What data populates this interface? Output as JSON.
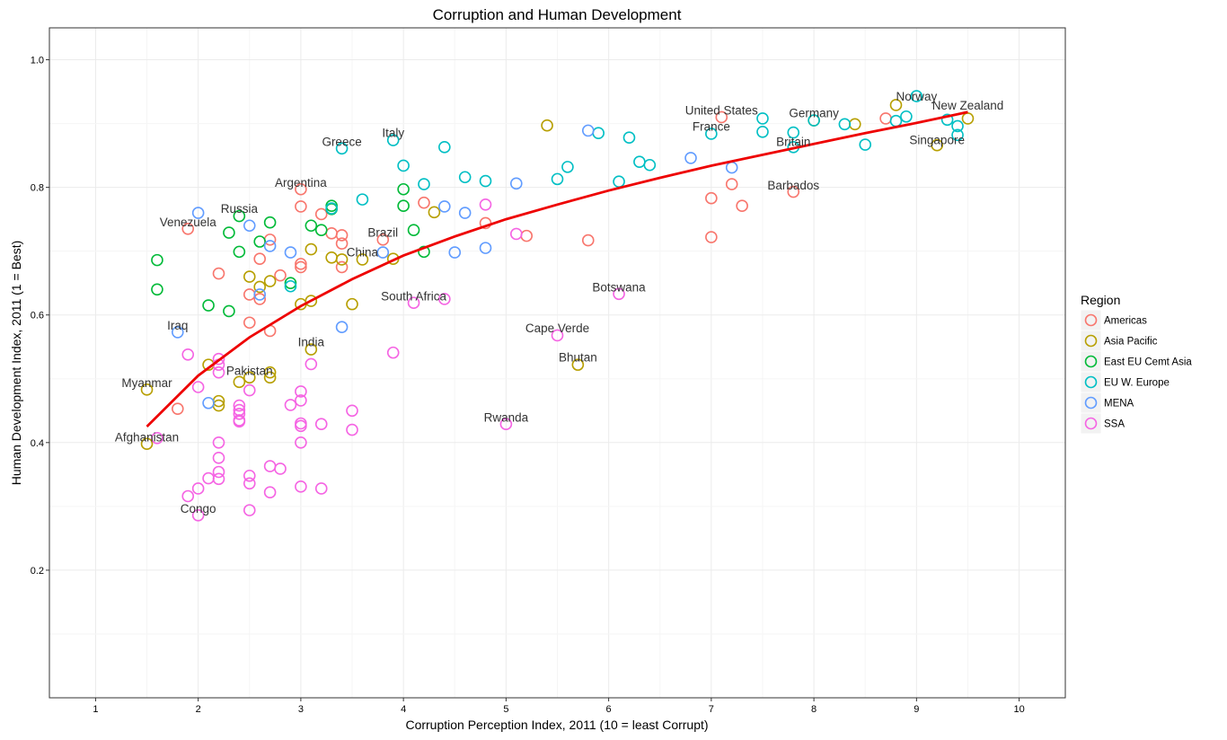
{
  "chart_data": {
    "type": "scatter",
    "title": "Corruption and Human Development",
    "xlabel": "Corruption Perception Index, 2011 (10 = least Corrupt)",
    "ylabel": "Human Development Index, 2011 (1 = Best)",
    "xlim": [
      0.55,
      10.45
    ],
    "ylim": [
      0.0,
      1.05
    ],
    "x_ticks": [
      "1",
      "2",
      "3",
      "4",
      "5",
      "6",
      "7",
      "8",
      "9",
      "10"
    ],
    "y_ticks": [
      "0.2",
      "0.4",
      "0.6",
      "0.8",
      "1.0"
    ],
    "grid": true,
    "legend": {
      "title": "Region",
      "position": "right"
    },
    "series": [
      {
        "name": "Americas",
        "color": "#F8766D",
        "points": [
          [
            1.9,
            0.735
          ],
          [
            2.2,
            0.665
          ],
          [
            2.5,
            0.632
          ],
          [
            2.5,
            0.588
          ],
          [
            2.6,
            0.688
          ],
          [
            2.6,
            0.625
          ],
          [
            2.7,
            0.718
          ],
          [
            2.7,
            0.575
          ],
          [
            2.8,
            0.662
          ],
          [
            3.0,
            0.797
          ],
          [
            3.0,
            0.77
          ],
          [
            3.0,
            0.68
          ],
          [
            3.0,
            0.675
          ],
          [
            3.2,
            0.758
          ],
          [
            3.3,
            0.728
          ],
          [
            3.4,
            0.725
          ],
          [
            3.4,
            0.712
          ],
          [
            3.4,
            0.675
          ],
          [
            3.8,
            0.718
          ],
          [
            4.2,
            0.776
          ],
          [
            4.8,
            0.744
          ],
          [
            5.2,
            0.724
          ],
          [
            5.8,
            0.717
          ],
          [
            7.0,
            0.783
          ],
          [
            7.0,
            0.722
          ],
          [
            7.1,
            0.91
          ],
          [
            7.2,
            0.805
          ],
          [
            7.3,
            0.771
          ],
          [
            7.8,
            0.793
          ],
          [
            8.7,
            0.908
          ],
          [
            1.8,
            0.453
          ]
        ]
      },
      {
        "name": "Asia Pacific",
        "color": "#B79F00",
        "points": [
          [
            1.5,
            0.483
          ],
          [
            1.5,
            0.398
          ],
          [
            2.1,
            0.522
          ],
          [
            2.2,
            0.465
          ],
          [
            2.2,
            0.458
          ],
          [
            2.4,
            0.495
          ],
          [
            2.5,
            0.502
          ],
          [
            2.5,
            0.66
          ],
          [
            2.6,
            0.644
          ],
          [
            2.7,
            0.653
          ],
          [
            2.7,
            0.51
          ],
          [
            2.7,
            0.502
          ],
          [
            3.0,
            0.617
          ],
          [
            3.1,
            0.703
          ],
          [
            3.1,
            0.622
          ],
          [
            3.1,
            0.546
          ],
          [
            3.3,
            0.69
          ],
          [
            3.4,
            0.687
          ],
          [
            3.5,
            0.617
          ],
          [
            3.6,
            0.687
          ],
          [
            3.9,
            0.688
          ],
          [
            4.3,
            0.761
          ],
          [
            5.4,
            0.897
          ],
          [
            5.7,
            0.522
          ],
          [
            8.0,
            0.905
          ],
          [
            8.4,
            0.899
          ],
          [
            8.8,
            0.929
          ],
          [
            9.2,
            0.866
          ],
          [
            9.5,
            0.908
          ]
        ]
      },
      {
        "name": "East EU Cemt Asia",
        "color": "#00BA38",
        "points": [
          [
            1.6,
            0.686
          ],
          [
            1.6,
            0.64
          ],
          [
            2.1,
            0.615
          ],
          [
            2.3,
            0.729
          ],
          [
            2.3,
            0.606
          ],
          [
            2.4,
            0.755
          ],
          [
            2.4,
            0.699
          ],
          [
            2.6,
            0.715
          ],
          [
            2.7,
            0.745
          ],
          [
            2.9,
            0.65
          ],
          [
            3.1,
            0.74
          ],
          [
            3.2,
            0.733
          ],
          [
            3.3,
            0.771
          ],
          [
            3.3,
            0.766
          ],
          [
            4.0,
            0.797
          ],
          [
            4.0,
            0.771
          ],
          [
            4.1,
            0.733
          ],
          [
            4.2,
            0.699
          ]
        ]
      },
      {
        "name": "EU W. Europe",
        "color": "#00BFC4",
        "points": [
          [
            2.9,
            0.645
          ],
          [
            3.3,
            0.767
          ],
          [
            3.4,
            0.861
          ],
          [
            3.6,
            0.781
          ],
          [
            3.9,
            0.874
          ],
          [
            4.0,
            0.834
          ],
          [
            4.2,
            0.805
          ],
          [
            4.4,
            0.863
          ],
          [
            4.6,
            0.816
          ],
          [
            4.8,
            0.81
          ],
          [
            5.5,
            0.813
          ],
          [
            5.6,
            0.832
          ],
          [
            5.9,
            0.885
          ],
          [
            6.1,
            0.809
          ],
          [
            6.2,
            0.878
          ],
          [
            6.3,
            0.84
          ],
          [
            6.4,
            0.835
          ],
          [
            7.0,
            0.884
          ],
          [
            7.5,
            0.908
          ],
          [
            7.5,
            0.887
          ],
          [
            7.8,
            0.886
          ],
          [
            7.8,
            0.863
          ],
          [
            8.0,
            0.905
          ],
          [
            8.3,
            0.899
          ],
          [
            8.5,
            0.867
          ],
          [
            8.8,
            0.904
          ],
          [
            8.9,
            0.911
          ],
          [
            9.0,
            0.943
          ],
          [
            9.3,
            0.906
          ],
          [
            9.4,
            0.896
          ],
          [
            9.4,
            0.882
          ]
        ]
      },
      {
        "name": "MENA",
        "color": "#619CFF",
        "points": [
          [
            1.8,
            0.573
          ],
          [
            2.0,
            0.76
          ],
          [
            2.1,
            0.462
          ],
          [
            2.5,
            0.74
          ],
          [
            2.6,
            0.632
          ],
          [
            2.7,
            0.708
          ],
          [
            2.9,
            0.698
          ],
          [
            3.4,
            0.581
          ],
          [
            3.8,
            0.698
          ],
          [
            4.4,
            0.77
          ],
          [
            4.5,
            0.698
          ],
          [
            4.6,
            0.76
          ],
          [
            4.8,
            0.705
          ],
          [
            5.1,
            0.806
          ],
          [
            5.8,
            0.889
          ],
          [
            6.8,
            0.846
          ],
          [
            7.2,
            0.831
          ]
        ]
      },
      {
        "name": "SSA",
        "color": "#F564E3",
        "points": [
          [
            1.6,
            0.407
          ],
          [
            1.9,
            0.538
          ],
          [
            1.9,
            0.316
          ],
          [
            2.0,
            0.487
          ],
          [
            2.0,
            0.328
          ],
          [
            2.0,
            0.286
          ],
          [
            2.1,
            0.344
          ],
          [
            2.2,
            0.531
          ],
          [
            2.2,
            0.522
          ],
          [
            2.2,
            0.51
          ],
          [
            2.2,
            0.4
          ],
          [
            2.2,
            0.376
          ],
          [
            2.2,
            0.354
          ],
          [
            2.2,
            0.343
          ],
          [
            2.4,
            0.458
          ],
          [
            2.4,
            0.451
          ],
          [
            2.4,
            0.445
          ],
          [
            2.4,
            0.435
          ],
          [
            2.4,
            0.433
          ],
          [
            2.5,
            0.482
          ],
          [
            2.5,
            0.348
          ],
          [
            2.5,
            0.336
          ],
          [
            2.5,
            0.294
          ],
          [
            2.7,
            0.363
          ],
          [
            2.7,
            0.322
          ],
          [
            2.8,
            0.359
          ],
          [
            2.9,
            0.459
          ],
          [
            3.0,
            0.48
          ],
          [
            3.0,
            0.466
          ],
          [
            3.0,
            0.43
          ],
          [
            3.0,
            0.426
          ],
          [
            3.0,
            0.4
          ],
          [
            3.0,
            0.331
          ],
          [
            3.1,
            0.523
          ],
          [
            3.2,
            0.429
          ],
          [
            3.2,
            0.328
          ],
          [
            3.5,
            0.45
          ],
          [
            3.5,
            0.42
          ],
          [
            3.9,
            0.541
          ],
          [
            4.1,
            0.619
          ],
          [
            4.4,
            0.625
          ],
          [
            4.8,
            0.773
          ],
          [
            5.0,
            0.429
          ],
          [
            5.1,
            0.727
          ],
          [
            5.5,
            0.568
          ],
          [
            6.1,
            0.633
          ]
        ]
      }
    ],
    "trend": {
      "name": "fit",
      "color": "#EE0000",
      "points": [
        [
          1.5,
          0.425
        ],
        [
          2.0,
          0.505
        ],
        [
          2.5,
          0.565
        ],
        [
          3.0,
          0.614
        ],
        [
          3.5,
          0.656
        ],
        [
          4.0,
          0.693
        ],
        [
          4.5,
          0.723
        ],
        [
          5.0,
          0.75
        ],
        [
          5.5,
          0.773
        ],
        [
          6.0,
          0.795
        ],
        [
          6.5,
          0.815
        ],
        [
          7.0,
          0.834
        ],
        [
          7.5,
          0.851
        ],
        [
          8.0,
          0.868
        ],
        [
          8.5,
          0.885
        ],
        [
          9.0,
          0.901
        ],
        [
          9.5,
          0.918
        ]
      ]
    },
    "annotations": [
      {
        "text": "Norway",
        "x": 9.0,
        "y": 0.943
      },
      {
        "text": "New Zealand",
        "x": 9.5,
        "y": 0.929
      },
      {
        "text": "United States",
        "x": 7.1,
        "y": 0.921
      },
      {
        "text": "Germany",
        "x": 8.0,
        "y": 0.917
      },
      {
        "text": "France",
        "x": 7.0,
        "y": 0.896
      },
      {
        "text": "Singapore",
        "x": 9.2,
        "y": 0.875
      },
      {
        "text": "Britain",
        "x": 7.8,
        "y": 0.872
      },
      {
        "text": "Italy",
        "x": 3.9,
        "y": 0.886
      },
      {
        "text": "Greece",
        "x": 3.4,
        "y": 0.872
      },
      {
        "text": "Barbados",
        "x": 7.8,
        "y": 0.804
      },
      {
        "text": "Argentina",
        "x": 3.0,
        "y": 0.808
      },
      {
        "text": "Russia",
        "x": 2.4,
        "y": 0.767
      },
      {
        "text": "Venezuela",
        "x": 1.9,
        "y": 0.746
      },
      {
        "text": "Brazil",
        "x": 3.8,
        "y": 0.73
      },
      {
        "text": "China",
        "x": 3.6,
        "y": 0.699
      },
      {
        "text": "Botswana",
        "x": 6.1,
        "y": 0.644
      },
      {
        "text": "South Africa",
        "x": 4.1,
        "y": 0.63
      },
      {
        "text": "Iraq",
        "x": 1.8,
        "y": 0.584
      },
      {
        "text": "Cape Verde",
        "x": 5.5,
        "y": 0.58
      },
      {
        "text": "Bhutan",
        "x": 5.7,
        "y": 0.534
      },
      {
        "text": "India",
        "x": 3.1,
        "y": 0.558
      },
      {
        "text": "Pakistan",
        "x": 2.5,
        "y": 0.513
      },
      {
        "text": "Myanmar",
        "x": 1.5,
        "y": 0.494
      },
      {
        "text": "Rwanda",
        "x": 5.0,
        "y": 0.44
      },
      {
        "text": "Afghanistan",
        "x": 1.5,
        "y": 0.409
      },
      {
        "text": "Congo",
        "x": 2.0,
        "y": 0.297
      }
    ]
  }
}
